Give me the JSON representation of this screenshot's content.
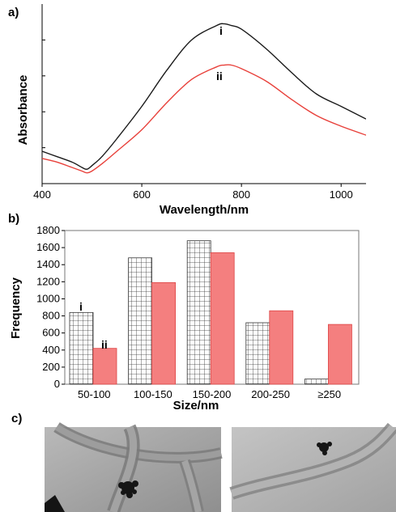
{
  "figure": {
    "panel_a_label": "a)",
    "panel_b_label": "b)",
    "panel_c_label": "c)"
  },
  "chart_data": [
    {
      "type": "line",
      "xlabel": "Wavelength/nm",
      "ylabel": "Absorbance",
      "xlim": [
        400,
        1050
      ],
      "ylim": [
        0,
        1
      ],
      "x_ticks": [
        400,
        600,
        800,
        1000
      ],
      "y_tick_labels_shown": false,
      "series": [
        {
          "name": "i",
          "color": "#1a1a1a",
          "x": [
            400,
            430,
            460,
            480,
            490,
            500,
            520,
            550,
            600,
            650,
            700,
            750,
            765,
            780,
            800,
            850,
            900,
            950,
            1000,
            1050
          ],
          "y": [
            0.18,
            0.15,
            0.12,
            0.09,
            0.08,
            0.1,
            0.15,
            0.25,
            0.43,
            0.63,
            0.8,
            0.88,
            0.89,
            0.88,
            0.86,
            0.75,
            0.62,
            0.5,
            0.43,
            0.36
          ]
        },
        {
          "name": "ii",
          "color": "#e8403a",
          "x": [
            400,
            430,
            460,
            480,
            490,
            500,
            520,
            550,
            600,
            650,
            700,
            750,
            765,
            780,
            800,
            850,
            900,
            950,
            1000,
            1050
          ],
          "y": [
            0.14,
            0.12,
            0.09,
            0.07,
            0.06,
            0.07,
            0.11,
            0.18,
            0.3,
            0.45,
            0.58,
            0.65,
            0.66,
            0.66,
            0.64,
            0.57,
            0.47,
            0.38,
            0.32,
            0.27
          ]
        }
      ]
    },
    {
      "type": "bar",
      "xlabel": "Size/nm",
      "ylabel": "Frequency",
      "categories": [
        "50-100",
        "100-150",
        "150-200",
        "200-250",
        "≥250"
      ],
      "ylim": [
        0,
        1800
      ],
      "y_ticks": [
        0,
        200,
        400,
        600,
        800,
        1000,
        1200,
        1400,
        1600,
        1800
      ],
      "series": [
        {
          "name": "i",
          "color": "#ffffff",
          "pattern": "grid",
          "values": [
            840,
            1480,
            1680,
            720,
            60
          ]
        },
        {
          "name": "ii",
          "color": "#f47f7f",
          "values": [
            420,
            1190,
            1540,
            860,
            700
          ]
        }
      ]
    }
  ],
  "images": [
    {
      "name": "tem-image-left",
      "description_icon": "tem-micrograph"
    },
    {
      "name": "tem-image-right",
      "description_icon": "tem-micrograph"
    }
  ]
}
